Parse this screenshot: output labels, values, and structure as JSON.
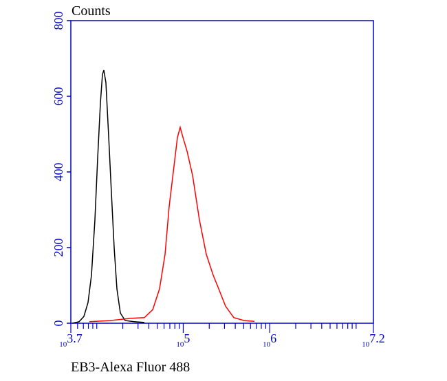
{
  "chart_data": {
    "type": "line",
    "title": "Counts",
    "xlabel": "EB3-Alexa Fluor 488",
    "log_x": true,
    "xlim": [
      5011.87,
      15848932
    ],
    "xticks": [
      {
        "value": 5011.87,
        "label": "103.7"
      },
      {
        "value": 100000,
        "label": "105"
      },
      {
        "value": 1000000,
        "label": "106"
      },
      {
        "value": 15848932,
        "label": "107.2"
      }
    ],
    "xminorticks": [
      6000,
      7000,
      8000,
      9000,
      10000,
      20000,
      30000,
      40000,
      50000,
      60000,
      70000,
      80000,
      90000,
      200000,
      300000,
      400000,
      500000,
      600000,
      700000,
      800000,
      900000,
      2000000,
      3000000,
      4000000,
      5000000,
      6000000,
      7000000,
      8000000,
      9000000,
      10000000
    ],
    "ylim": [
      0,
      800
    ],
    "yticks": [
      0,
      200,
      400,
      600,
      800
    ],
    "axis_color": "#0000cc",
    "series": [
      {
        "color": "#000000",
        "x": [
          5200,
          6240,
          7100,
          7920,
          8690,
          9510,
          10230,
          11010,
          11640,
          12070,
          12760,
          13740,
          14770,
          15890,
          17100,
          18740,
          21290,
          27020,
          35560
        ],
        "values": [
          0,
          4,
          18,
          55,
          127,
          273,
          436,
          582,
          658,
          669,
          636,
          491,
          345,
          200,
          91,
          27,
          7,
          4,
          2
        ]
      },
      {
        "color": "#ff0000",
        "x": [
          8220,
          14220,
          24660,
          35560,
          44360,
          53230,
          61630,
          68840,
          76740,
          85700,
          92250,
          99310,
          110700,
          128200,
          154100,
          185000,
          222300,
          257100,
          309000,
          384600,
          507000,
          666800
        ],
        "values": [
          4,
          7,
          13,
          15,
          36,
          91,
          182,
          309,
          400,
          491,
          518,
          491,
          455,
          391,
          273,
          182,
          127,
          91,
          45,
          15,
          7,
          5
        ]
      }
    ]
  }
}
